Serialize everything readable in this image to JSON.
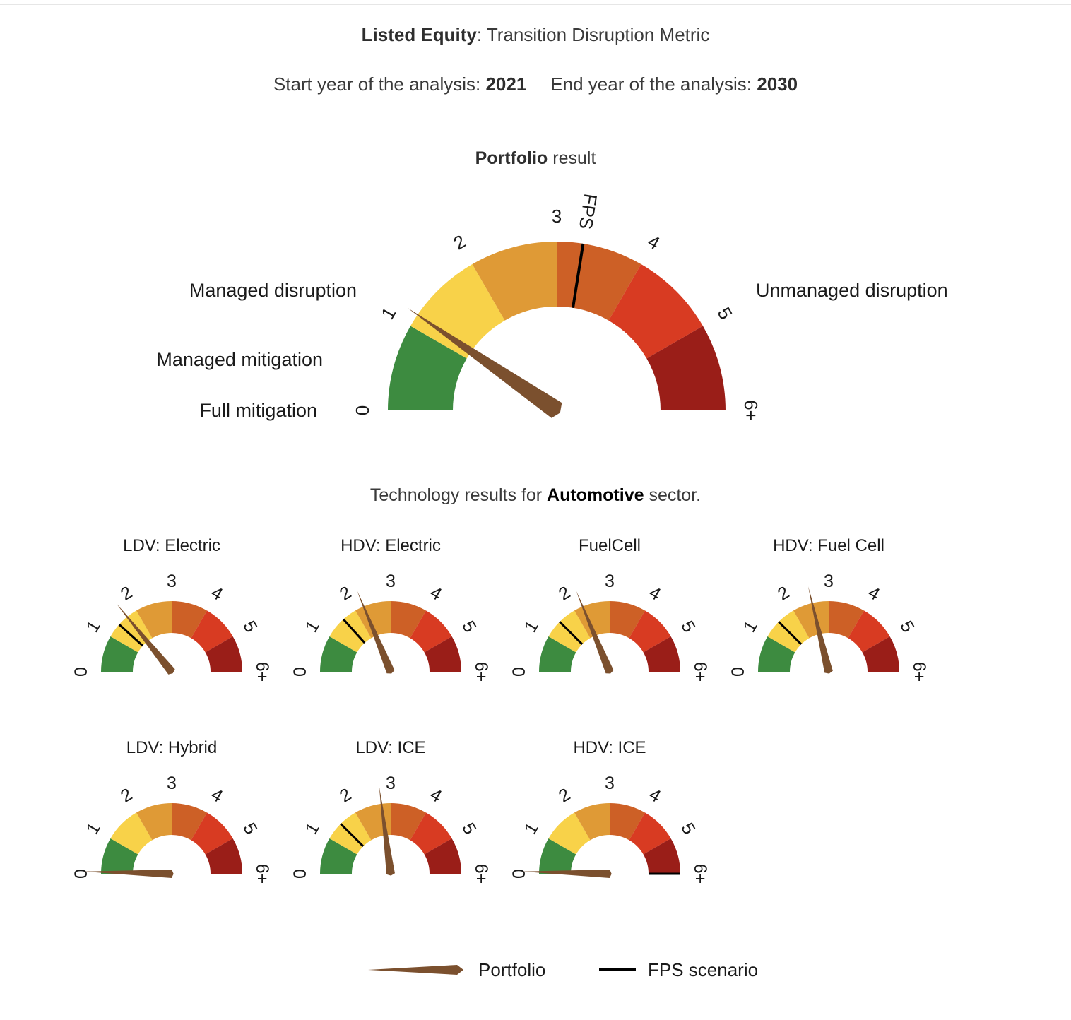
{
  "header": {
    "title_bold": "Listed Equity",
    "title_rest": ": Transition Disruption Metric",
    "start_label": "Start year of the analysis: ",
    "start_year": "2021",
    "end_label": "End year of the analysis: ",
    "end_year": "2030"
  },
  "portfolio_section": {
    "title_bold": "Portfolio",
    "title_rest": " result"
  },
  "tech_section": {
    "prefix": "Technology results for ",
    "sector": "Automotive",
    "suffix": " sector."
  },
  "zones": {
    "full_mitigation": "Full mitigation",
    "managed_mitigation": "Managed mitigation",
    "managed_disruption": "Managed disruption",
    "unmanaged_disruption": "Unmanaged disruption"
  },
  "legend": {
    "portfolio": "Portfolio",
    "fps": "FPS scenario"
  },
  "chart_data": {
    "type": "gauge",
    "scale": {
      "min": 0,
      "max": 6,
      "tick_labels": [
        "0",
        "1",
        "2",
        "3",
        "4",
        "5",
        "6+"
      ]
    },
    "band_colors": [
      "#3d8b40",
      "#f8d249",
      "#df9a36",
      "#cd6026",
      "#d83b22",
      "#9a1e18"
    ],
    "needle_color": "#7b502e",
    "fps_color": "#000000",
    "fps_label": "FPS",
    "portfolio": {
      "name": "Portfolio",
      "value": 1.15,
      "fps": 3.3
    },
    "technologies": [
      {
        "name": "LDV: Electric",
        "portfolio": 1.7,
        "fps": 1.4
      },
      {
        "name": "HDV: Electric",
        "portfolio": 2.25,
        "fps": 1.6
      },
      {
        "name": "FuelCell",
        "portfolio": 2.25,
        "fps": 1.5
      },
      {
        "name": "HDV: Fuel Cell",
        "portfolio": 2.55,
        "fps": 1.5
      },
      {
        "name": "LDV: Hybrid",
        "portfolio": 0.05,
        "fps": null
      },
      {
        "name": "LDV: ICE",
        "portfolio": 2.75,
        "fps": 1.5
      },
      {
        "name": "HDV: ICE",
        "portfolio": 0.05,
        "fps": 6.0
      }
    ]
  }
}
